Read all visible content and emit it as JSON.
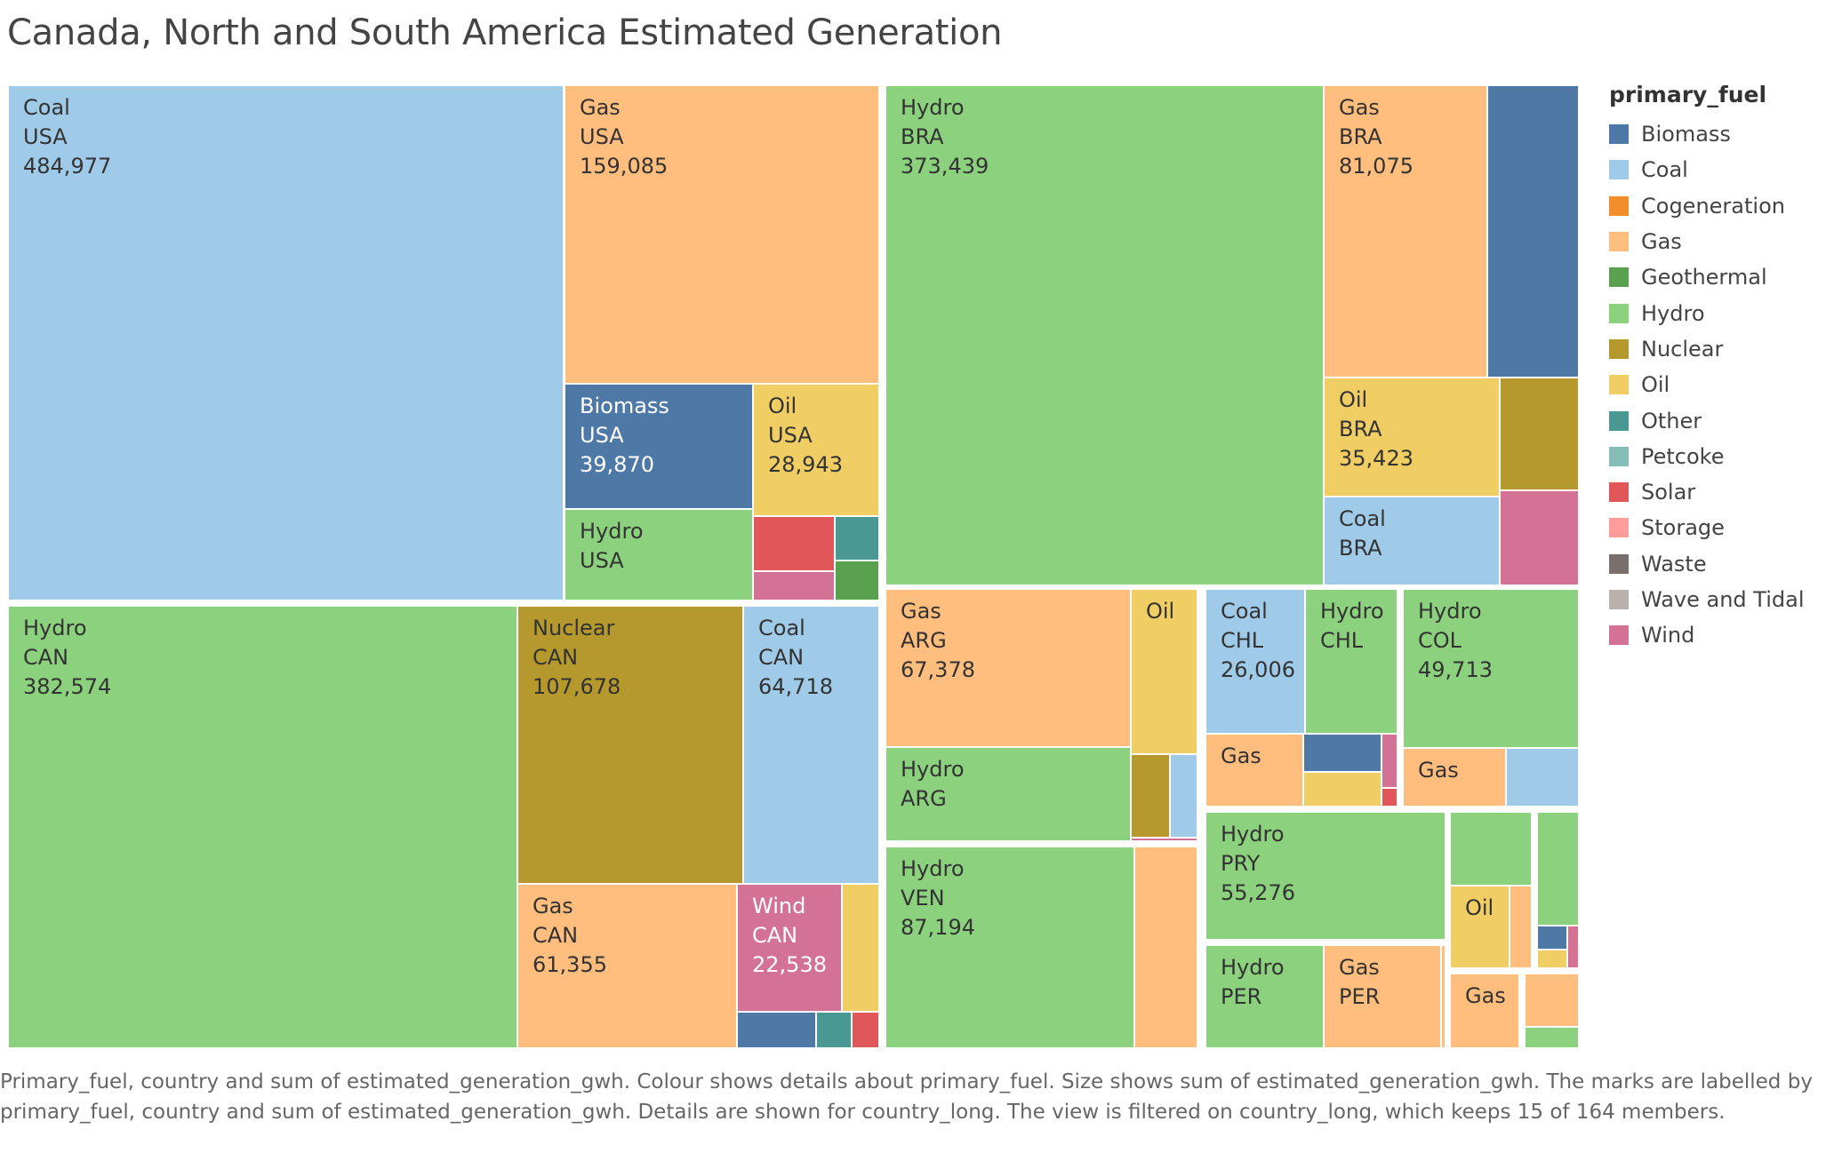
{
  "title": "Canada, North and South America Estimated Generation",
  "legend": {
    "title": "primary_fuel",
    "items": [
      {
        "label": "Biomass",
        "color": "#4E79A7"
      },
      {
        "label": "Coal",
        "color": "#A0CBE8"
      },
      {
        "label": "Cogeneration",
        "color": "#F28E2B"
      },
      {
        "label": "Gas",
        "color": "#FFBE7D"
      },
      {
        "label": "Geothermal",
        "color": "#59A14F"
      },
      {
        "label": "Hydro",
        "color": "#8CD17D"
      },
      {
        "label": "Nuclear",
        "color": "#B6992D"
      },
      {
        "label": "Oil",
        "color": "#F1CE63"
      },
      {
        "label": "Other",
        "color": "#499894"
      },
      {
        "label": "Petcoke",
        "color": "#86BCB6"
      },
      {
        "label": "Solar",
        "color": "#E15759"
      },
      {
        "label": "Storage",
        "color": "#FF9D9A"
      },
      {
        "label": "Waste",
        "color": "#79706E"
      },
      {
        "label": "Wave and Tidal",
        "color": "#BAB0AC"
      },
      {
        "label": "Wind",
        "color": "#D37295"
      }
    ]
  },
  "caption": "Primary_fuel, country and sum of estimated_generation_gwh.  Colour shows details about primary_fuel.  Size shows sum of estimated_generation_gwh.  The marks are labelled by primary_fuel, country and sum of estimated_generation_gwh.  Details are shown for country_long. The view is filtered on country_long, which keeps 15 of 164 members.",
  "chart_data": {
    "type": "treemap",
    "size_measure": "sum of estimated_generation_gwh",
    "color_field": "primary_fuel",
    "labelled_marks": [
      {
        "fuel": "Coal",
        "country": "USA",
        "value": "484,977"
      },
      {
        "fuel": "Gas",
        "country": "USA",
        "value": "159,085"
      },
      {
        "fuel": "Biomass",
        "country": "USA",
        "value": "39,870"
      },
      {
        "fuel": "Oil",
        "country": "USA",
        "value": "28,943"
      },
      {
        "fuel": "Hydro",
        "country": "USA",
        "value": null
      },
      {
        "fuel": "Hydro",
        "country": "CAN",
        "value": "382,574"
      },
      {
        "fuel": "Nuclear",
        "country": "CAN",
        "value": "107,678"
      },
      {
        "fuel": "Coal",
        "country": "CAN",
        "value": "64,718"
      },
      {
        "fuel": "Gas",
        "country": "CAN",
        "value": "61,355"
      },
      {
        "fuel": "Wind",
        "country": "CAN",
        "value": "22,538"
      },
      {
        "fuel": "Hydro",
        "country": "BRA",
        "value": "373,439"
      },
      {
        "fuel": "Gas",
        "country": "BRA",
        "value": "81,075"
      },
      {
        "fuel": "Oil",
        "country": "BRA",
        "value": "35,423"
      },
      {
        "fuel": "Coal",
        "country": "BRA",
        "value": null
      },
      {
        "fuel": "Gas",
        "country": "ARG",
        "value": "67,378"
      },
      {
        "fuel": "Hydro",
        "country": "ARG",
        "value": null
      },
      {
        "fuel": "Oil",
        "country": null,
        "value": null
      },
      {
        "fuel": "Hydro",
        "country": "VEN",
        "value": "87,194"
      },
      {
        "fuel": "Coal",
        "country": "CHL",
        "value": "26,006"
      },
      {
        "fuel": "Hydro",
        "country": "CHL",
        "value": null
      },
      {
        "fuel": "Gas",
        "country": null,
        "value": null
      },
      {
        "fuel": "Hydro",
        "country": "COL",
        "value": "49,713"
      },
      {
        "fuel": "Gas",
        "country": null,
        "value": null
      },
      {
        "fuel": "Hydro",
        "country": "PRY",
        "value": "55,276"
      },
      {
        "fuel": "Hydro",
        "country": "PER",
        "value": null
      },
      {
        "fuel": "Gas",
        "country": "PER",
        "value": null
      },
      {
        "fuel": "Oil",
        "country": null,
        "value": null
      },
      {
        "fuel": "Gas",
        "country": null,
        "value": null
      }
    ]
  }
}
